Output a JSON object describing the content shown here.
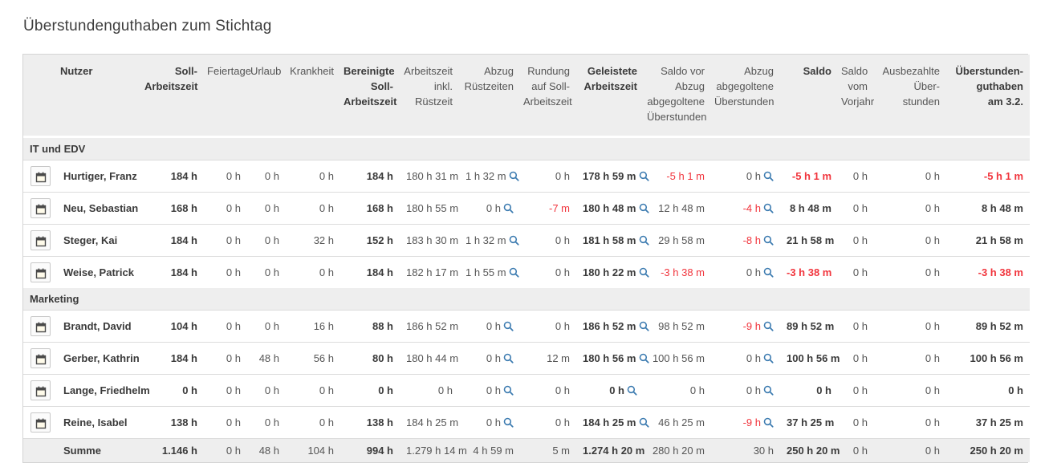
{
  "page": {
    "title": "Überstundenguthaben zum Stichtag"
  },
  "colors": {
    "header_bg": "#eeeeee",
    "accent_red": "#f1353d",
    "magnifier_blue": "#3c7bb0",
    "border": "#d4d4d4"
  },
  "icons": {
    "row_action": "calendar-icon",
    "detail_lookup": "magnifier-icon"
  },
  "table": {
    "columns": [
      {
        "label": "Nutzer",
        "bold": true,
        "align": "left"
      },
      {
        "label": "Soll-\nArbeitszeit",
        "bold": true
      },
      {
        "label": "Feiertage",
        "bold": false
      },
      {
        "label": "Urlaub",
        "bold": false
      },
      {
        "label": "Krankheit",
        "bold": false
      },
      {
        "label": "Bereinigte\nSoll-\nArbeitszeit",
        "bold": true
      },
      {
        "label": "Arbeitszeit\ninkl.\nRüstzeit",
        "bold": false
      },
      {
        "label": "Abzug\nRüstzeiten",
        "bold": false
      },
      {
        "label": "Rundung\nauf Soll-\nArbeitszeit",
        "bold": false
      },
      {
        "label": "Geleistete\nArbeitszeit",
        "bold": true
      },
      {
        "label": "Saldo vor\nAbzug\nabgegoltene\nÜberstunden",
        "bold": false
      },
      {
        "label": "Abzug\nabgegoltene\nÜberstunden",
        "bold": false
      },
      {
        "label": "Saldo",
        "bold": true
      },
      {
        "label": "Saldo\nvom\nVorjahr",
        "bold": false
      },
      {
        "label": "Ausbezahlte\nÜber-\nstunden",
        "bold": false
      },
      {
        "label": "Überstunden-\nguthaben\nam 3.2.",
        "bold": true
      }
    ],
    "groups": [
      {
        "label": "IT und EDV",
        "rows": [
          {
            "name": "Hurtiger, Franz",
            "cells": [
              "184 h",
              "0 h",
              "0 h",
              "0 h",
              "184 h",
              "180 h 31 m",
              {
                "t": "1 h 32 m",
                "zoom": true
              },
              "0 h",
              {
                "t": "178 h 59 m",
                "zoom": true
              },
              {
                "t": "-5 h 1 m",
                "red": true
              },
              {
                "t": "0 h",
                "zoom": true
              },
              {
                "t": "-5 h 1 m",
                "red": true
              },
              "0 h",
              "0 h",
              {
                "t": "-5 h 1 m",
                "red": true
              }
            ]
          },
          {
            "name": "Neu, Sebastian",
            "cells": [
              "168 h",
              "0 h",
              "0 h",
              "0 h",
              "168 h",
              "180 h 55 m",
              {
                "t": "0 h",
                "zoom": true
              },
              {
                "t": "-7 m",
                "red": true
              },
              {
                "t": "180 h 48 m",
                "zoom": true
              },
              "12 h 48 m",
              {
                "t": "-4 h",
                "red": true,
                "zoom": true
              },
              "8 h 48 m",
              "0 h",
              "0 h",
              "8 h 48 m"
            ]
          },
          {
            "name": "Steger, Kai",
            "cells": [
              "184 h",
              "0 h",
              "0 h",
              "32 h",
              "152 h",
              "183 h 30 m",
              {
                "t": "1 h 32 m",
                "zoom": true
              },
              "0 h",
              {
                "t": "181 h 58 m",
                "zoom": true
              },
              "29 h 58 m",
              {
                "t": "-8 h",
                "red": true,
                "zoom": true
              },
              "21 h 58 m",
              "0 h",
              "0 h",
              "21 h 58 m"
            ]
          },
          {
            "name": "Weise, Patrick",
            "cells": [
              "184 h",
              "0 h",
              "0 h",
              "0 h",
              "184 h",
              "182 h 17 m",
              {
                "t": "1 h 55 m",
                "zoom": true
              },
              "0 h",
              {
                "t": "180 h 22 m",
                "zoom": true
              },
              {
                "t": "-3 h 38 m",
                "red": true
              },
              {
                "t": "0 h",
                "zoom": true
              },
              {
                "t": "-3 h 38 m",
                "red": true
              },
              "0 h",
              "0 h",
              {
                "t": "-3 h 38 m",
                "red": true
              }
            ]
          }
        ]
      },
      {
        "label": "Marketing",
        "rows": [
          {
            "name": "Brandt, David",
            "cells": [
              "104 h",
              "0 h",
              "0 h",
              "16 h",
              "88 h",
              "186 h 52 m",
              {
                "t": "0 h",
                "zoom": true
              },
              "0 h",
              {
                "t": "186 h 52 m",
                "zoom": true
              },
              "98 h 52 m",
              {
                "t": "-9 h",
                "red": true,
                "zoom": true
              },
              "89 h 52 m",
              "0 h",
              "0 h",
              "89 h 52 m"
            ]
          },
          {
            "name": "Gerber, Kathrin",
            "cells": [
              "184 h",
              "0 h",
              "48 h",
              "56 h",
              "80 h",
              "180 h 44 m",
              {
                "t": "0 h",
                "zoom": true
              },
              "12 m",
              {
                "t": "180 h 56 m",
                "zoom": true
              },
              "100 h 56 m",
              {
                "t": "0 h",
                "zoom": true
              },
              "100 h 56 m",
              "0 h",
              "0 h",
              "100 h 56 m"
            ]
          },
          {
            "name": "Lange, Friedhelm",
            "cells": [
              "0 h",
              "0 h",
              "0 h",
              "0 h",
              "0 h",
              "0 h",
              {
                "t": "0 h",
                "zoom": true
              },
              "0 h",
              {
                "t": "0 h",
                "zoom": true
              },
              "0 h",
              {
                "t": "0 h",
                "zoom": true
              },
              "0 h",
              "0 h",
              "0 h",
              "0 h"
            ]
          },
          {
            "name": "Reine, Isabel",
            "cells": [
              "138 h",
              "0 h",
              "0 h",
              "0 h",
              "138 h",
              "184 h 25 m",
              {
                "t": "0 h",
                "zoom": true
              },
              "0 h",
              {
                "t": "184 h 25 m",
                "zoom": true
              },
              "46 h 25 m",
              {
                "t": "-9 h",
                "red": true,
                "zoom": true
              },
              "37 h 25 m",
              "0 h",
              "0 h",
              "37 h 25 m"
            ]
          }
        ]
      }
    ],
    "summary": {
      "label": "Summe",
      "cells": [
        "1.146 h",
        "0 h",
        "48 h",
        "104 h",
        "994 h",
        "1.279 h 14 m",
        "4 h 59 m",
        "5 m",
        "1.274 h 20 m",
        "280 h 20 m",
        "30 h",
        "250 h 20 m",
        "0 h",
        "0 h",
        "250 h 20 m"
      ]
    }
  }
}
